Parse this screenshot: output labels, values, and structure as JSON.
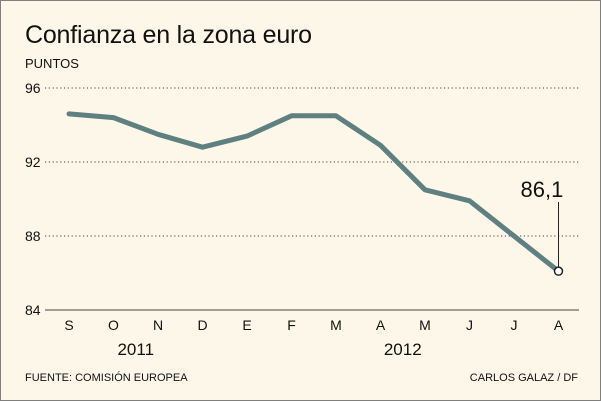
{
  "chart_data": {
    "type": "line",
    "title": "Confianza en la zona euro",
    "ylabel": "PUNTOS",
    "xlabel": "",
    "x": [
      "S",
      "O",
      "N",
      "D",
      "E",
      "F",
      "M",
      "A",
      "M",
      "J",
      "J",
      "A"
    ],
    "year_groups": [
      {
        "label": "2011",
        "from": 0,
        "to": 3
      },
      {
        "label": "2012",
        "from": 4,
        "to": 11
      }
    ],
    "series": [
      {
        "values": [
          94.6,
          94.4,
          93.5,
          92.8,
          93.4,
          94.5,
          94.5,
          92.9,
          90.5,
          89.9,
          88.0,
          86.1
        ]
      }
    ],
    "ylim": [
      84,
      96
    ],
    "yticks": [
      84,
      88,
      92,
      96
    ],
    "grid": "horizontal-dotted",
    "annotation": {
      "index": 11,
      "text": "86,1"
    },
    "line_color": "#5e8080"
  },
  "source": "FUENTE: COMISIÓN EUROPEA",
  "credit": "CARLOS GALAZ / DF"
}
